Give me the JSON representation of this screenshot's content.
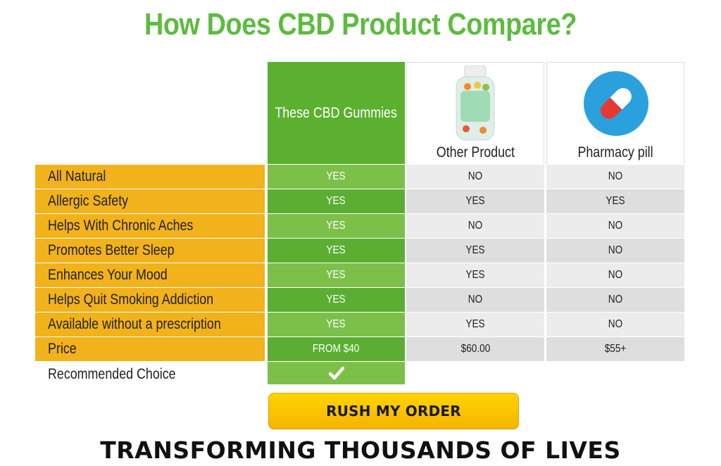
{
  "title": "How Does CBD Product Compare?",
  "columns": {
    "ours": "These CBD Gummies",
    "other": "Other Product",
    "pharmacy": "Pharmacy pill"
  },
  "rows": [
    {
      "feature": "All Natural",
      "ours": "YES",
      "other": "NO",
      "pharmacy": "NO"
    },
    {
      "feature": "Allergic Safety",
      "ours": "YES",
      "other": "YES",
      "pharmacy": "YES"
    },
    {
      "feature": "Helps With Chronic Aches",
      "ours": "YES",
      "other": "NO",
      "pharmacy": "NO"
    },
    {
      "feature": "Promotes Better Sleep",
      "ours": "YES",
      "other": "YES",
      "pharmacy": "NO"
    },
    {
      "feature": "Enhances Your Mood",
      "ours": "YES",
      "other": "YES",
      "pharmacy": "NO"
    },
    {
      "feature": "Helps Quit Smoking Addiction",
      "ours": "YES",
      "other": "NO",
      "pharmacy": "NO"
    },
    {
      "feature": "Available without a prescription",
      "ours": "YES",
      "other": "YES",
      "pharmacy": "NO"
    },
    {
      "feature": "Price",
      "ours": "FROM $40",
      "other": "$60.00",
      "pharmacy": "$55+"
    }
  ],
  "recommended": {
    "label": "Recommended Choice",
    "icon": "checkmark-icon"
  },
  "cta": {
    "label": "RUSH MY ORDER"
  },
  "subheading": "TRANSFORMING THOUSANDS OF LIVES",
  "icons": {
    "other": "supplement-bottle-icon",
    "pharmacy": "capsule-pill-icon"
  },
  "colors": {
    "title": "#5dbb3f",
    "green": "#5bb030",
    "feature": "#f2b21b",
    "cta": "#ffc800"
  }
}
